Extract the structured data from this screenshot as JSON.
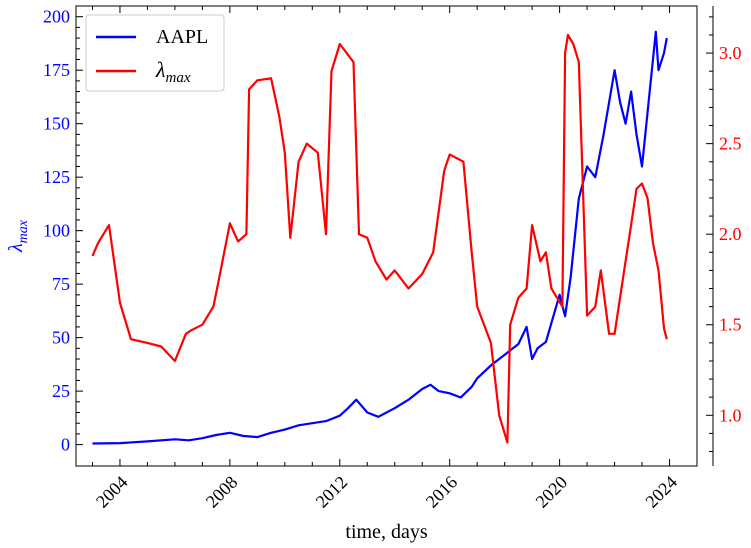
{
  "chart_data": {
    "type": "line",
    "title": "",
    "xlabel": "time, days",
    "ylabel_left": "λmax",
    "ylabel_left_parts": {
      "base": "λ",
      "sub": "max"
    },
    "ylabel_right": "",
    "xlim": [
      2002.4,
      2025.0
    ],
    "ylim_left": [
      -10,
      205
    ],
    "ylim_right": [
      0.72,
      3.26
    ],
    "x_ticks": [
      2004,
      2008,
      2012,
      2016,
      2020,
      2024
    ],
    "x_tick_labels": [
      "2004",
      "2008",
      "2012",
      "2016",
      "2020",
      "2024"
    ],
    "y_ticks_left": [
      0,
      25,
      50,
      75,
      100,
      125,
      150,
      175,
      200
    ],
    "y_tick_labels_left": [
      "0",
      "25",
      "50",
      "75",
      "100",
      "125",
      "150",
      "175",
      "200"
    ],
    "y_ticks_right": [
      1.0,
      1.5,
      2.0,
      2.5,
      3.0
    ],
    "y_tick_labels_right": [
      "1.0",
      "1.5",
      "2.0",
      "2.5",
      "3.0"
    ],
    "legend_position": "top-left",
    "grid": false,
    "left_axis_color": "#0000ff",
    "right_axis_color": "#ff0000",
    "series": [
      {
        "name": "AAPL",
        "axis": "left",
        "color": "#0000ff",
        "x": [
          2003.0,
          2004.0,
          2005.0,
          2006.0,
          2006.5,
          2007.0,
          2007.5,
          2008.0,
          2008.5,
          2009.0,
          2009.5,
          2010.0,
          2010.5,
          2011.0,
          2011.5,
          2012.0,
          2012.3,
          2012.6,
          2013.0,
          2013.4,
          2014.0,
          2014.5,
          2015.0,
          2015.3,
          2015.6,
          2016.0,
          2016.4,
          2016.8,
          2017.0,
          2017.5,
          2018.0,
          2018.5,
          2018.8,
          2019.0,
          2019.2,
          2019.5,
          2020.0,
          2020.2,
          2020.4,
          2020.7,
          2021.0,
          2021.3,
          2021.6,
          2021.8,
          2022.0,
          2022.2,
          2022.4,
          2022.6,
          2022.8,
          2023.0,
          2023.2,
          2023.5,
          2023.6,
          2023.8,
          2023.9
        ],
        "y": [
          0.5,
          0.7,
          1.5,
          2.5,
          2.0,
          3.0,
          4.5,
          5.5,
          4.0,
          3.5,
          5.5,
          7.0,
          9.0,
          10.0,
          11.0,
          13.5,
          17.0,
          21.0,
          15.0,
          13.0,
          17.0,
          21.0,
          26.0,
          28.0,
          25.0,
          24.0,
          22.0,
          27.0,
          31.0,
          37.0,
          42.0,
          47.0,
          55.0,
          40.0,
          45.0,
          48.0,
          70.0,
          60.0,
          78.0,
          115.0,
          130.0,
          125.0,
          145.0,
          160.0,
          175.0,
          160.0,
          150.0,
          165.0,
          145.0,
          130.0,
          155.0,
          193.0,
          175.0,
          183.0,
          190.0
        ]
      },
      {
        "name": "λmax",
        "name_parts": {
          "base": "λ",
          "sub": "max"
        },
        "axis": "right",
        "color": "#ff0000",
        "x": [
          2003.0,
          2003.2,
          2003.6,
          2004.0,
          2004.4,
          2005.0,
          2005.5,
          2006.0,
          2006.4,
          2006.6,
          2007.0,
          2007.4,
          2007.6,
          2008.0,
          2008.3,
          2008.6,
          2008.7,
          2009.0,
          2009.5,
          2009.8,
          2010.0,
          2010.2,
          2010.5,
          2010.8,
          2011.2,
          2011.5,
          2011.7,
          2012.0,
          2012.5,
          2012.7,
          2013.0,
          2013.3,
          2013.7,
          2014.0,
          2014.5,
          2015.0,
          2015.4,
          2015.8,
          2016.0,
          2016.5,
          2016.8,
          2017.0,
          2017.5,
          2017.8,
          2018.1,
          2018.2,
          2018.5,
          2018.8,
          2019.0,
          2019.3,
          2019.5,
          2019.7,
          2019.9,
          2020.1,
          2020.2,
          2020.3,
          2020.5,
          2020.7,
          2021.0,
          2021.3,
          2021.5,
          2021.8,
          2022.0,
          2022.3,
          2022.6,
          2022.8,
          2023.0,
          2023.2,
          2023.4,
          2023.6,
          2023.8,
          2023.9
        ],
        "y": [
          1.88,
          1.95,
          2.05,
          1.62,
          1.42,
          1.4,
          1.38,
          1.3,
          1.45,
          1.47,
          1.5,
          1.6,
          1.75,
          2.06,
          1.96,
          2.0,
          2.8,
          2.85,
          2.86,
          2.65,
          2.45,
          1.98,
          2.4,
          2.5,
          2.45,
          2.0,
          2.9,
          3.05,
          2.95,
          2.0,
          1.98,
          1.85,
          1.75,
          1.8,
          1.7,
          1.78,
          1.9,
          2.35,
          2.44,
          2.4,
          1.9,
          1.6,
          1.4,
          1.0,
          0.85,
          1.5,
          1.65,
          1.7,
          2.05,
          1.85,
          1.9,
          1.7,
          1.65,
          1.6,
          3.0,
          3.1,
          3.05,
          2.95,
          1.55,
          1.6,
          1.8,
          1.45,
          1.45,
          1.75,
          2.05,
          2.25,
          2.28,
          2.2,
          1.95,
          1.8,
          1.48,
          1.42
        ]
      }
    ]
  }
}
